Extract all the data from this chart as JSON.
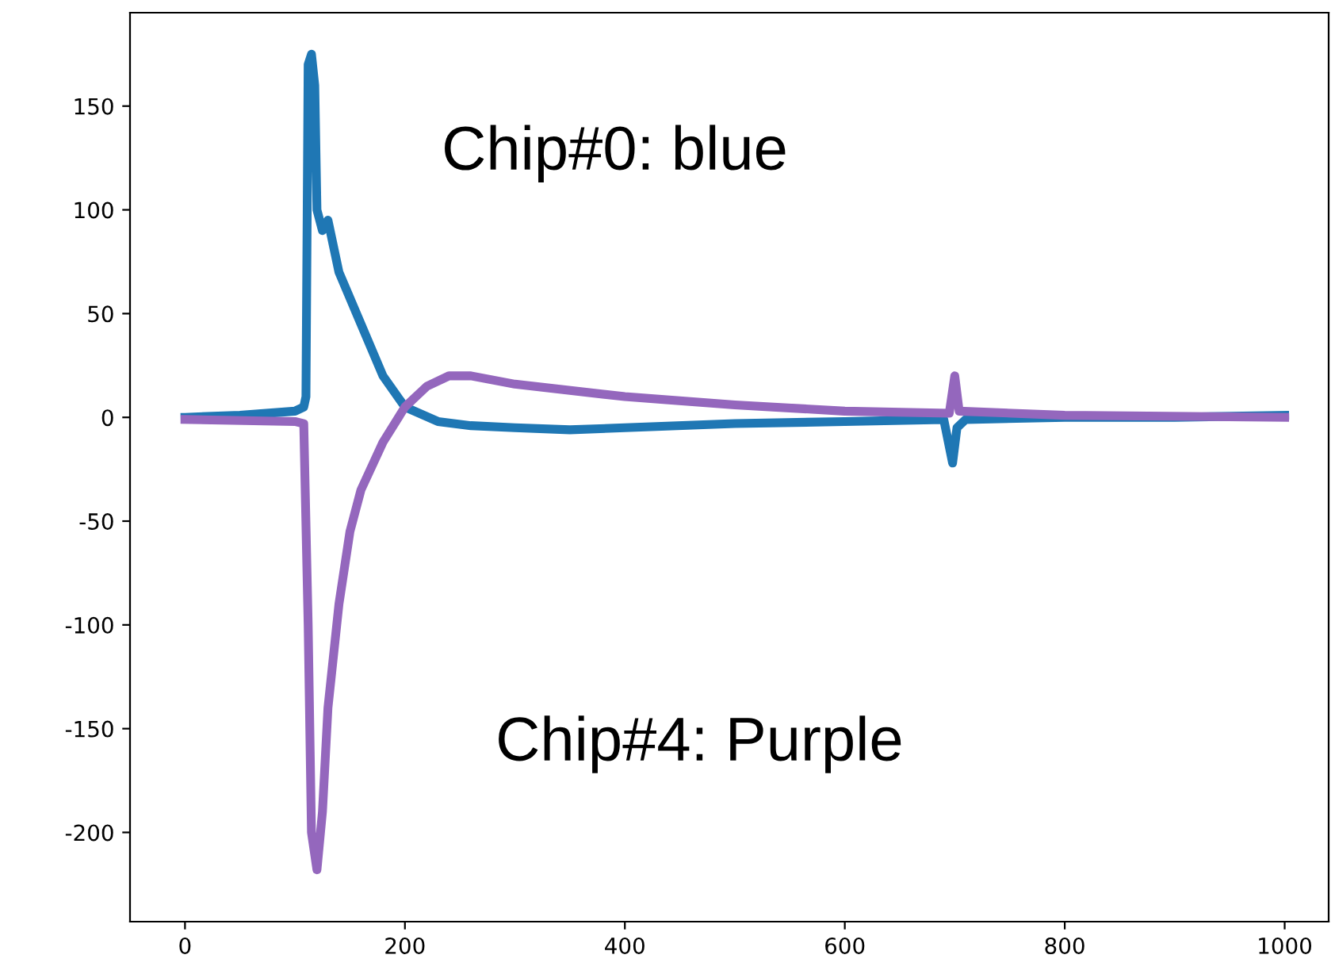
{
  "chart_data": {
    "type": "line",
    "annotations": [
      "Chip#0: blue",
      "Chip#4: Purple"
    ],
    "xlim": [
      -50,
      1040
    ],
    "ylim": [
      -243,
      195
    ],
    "xticks": [
      0,
      200,
      400,
      600,
      800,
      1000
    ],
    "yticks": [
      -200,
      -150,
      -100,
      -50,
      0,
      50,
      100,
      150
    ],
    "grid": false,
    "legend": false,
    "marker": "none",
    "line_style": "solid",
    "series": [
      {
        "color": "#1f77b4",
        "x": [
          0,
          50,
          100,
          108,
          110,
          112,
          115,
          118,
          120,
          125,
          130,
          140,
          160,
          180,
          200,
          230,
          260,
          300,
          350,
          400,
          500,
          600,
          690,
          698,
          702,
          710,
          800,
          900,
          1000
        ],
        "values": [
          0,
          1,
          3,
          5,
          10,
          170,
          175,
          160,
          100,
          90,
          95,
          70,
          45,
          20,
          5,
          -2,
          -4,
          -5,
          -6,
          -5,
          -3,
          -2,
          -1,
          -22,
          -5,
          -1,
          0,
          0,
          1
        ]
      },
      {
        "color": "#9467bd",
        "x": [
          0,
          100,
          108,
          112,
          115,
          120,
          125,
          130,
          140,
          150,
          160,
          180,
          200,
          220,
          240,
          260,
          300,
          400,
          500,
          600,
          695,
          700,
          704,
          800,
          1000
        ],
        "values": [
          -1,
          -2,
          -3,
          -100,
          -200,
          -218,
          -190,
          -140,
          -90,
          -55,
          -35,
          -12,
          5,
          15,
          20,
          20,
          16,
          10,
          6,
          3,
          2,
          20,
          3,
          1,
          0
        ]
      }
    ]
  }
}
